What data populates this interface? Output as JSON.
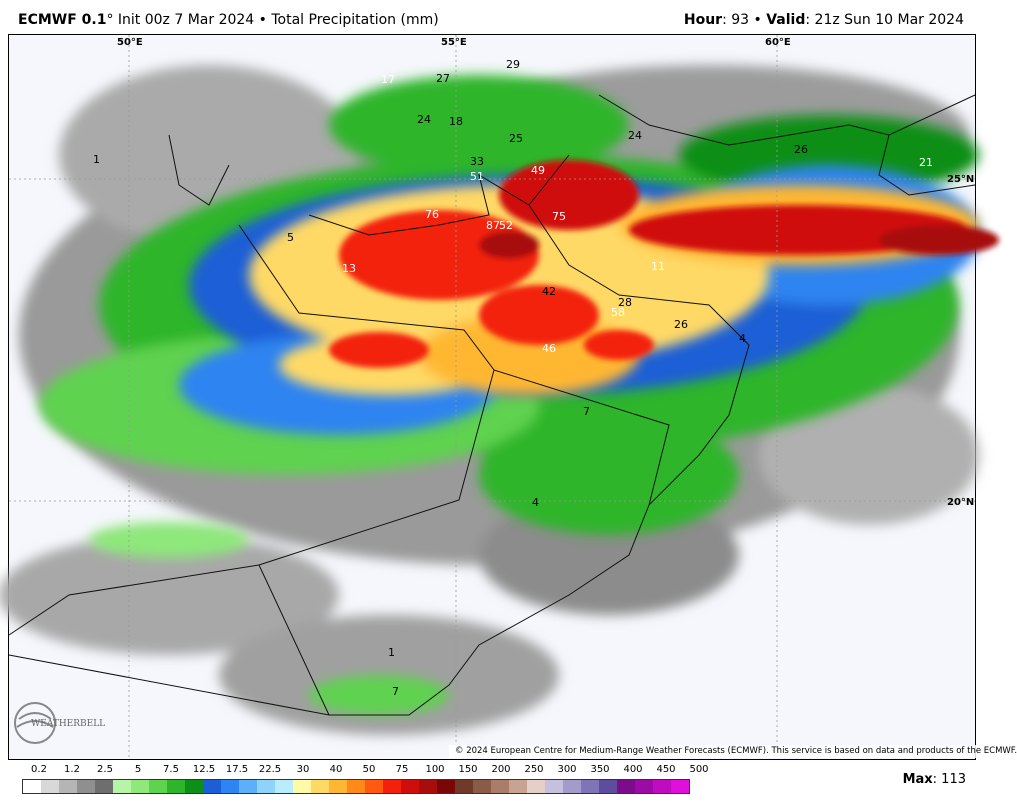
{
  "header": {
    "model": "ECMWF 0.1",
    "degree": "°",
    "init": " Init 00z 7 Mar 2024",
    "separator": " • ",
    "product": "Total Precipitation (mm)",
    "hour_label": "Hour",
    "hour_value": ": 93",
    "valid_label": "Valid",
    "valid_value": ": 21z Sun 10 Mar 2024"
  },
  "map": {
    "longitudes": [
      "50°E",
      "55°E",
      "60°E"
    ],
    "latitudes": [
      "25°N",
      "20°N"
    ],
    "point_labels": [
      {
        "text": "17",
        "color": "#ffffff"
      },
      {
        "text": "27",
        "color": "#000000"
      },
      {
        "text": "29",
        "color": "#000000"
      },
      {
        "text": "24",
        "color": "#000000"
      },
      {
        "text": "18",
        "color": "#000000"
      },
      {
        "text": "25",
        "color": "#000000"
      },
      {
        "text": "24",
        "color": "#000000"
      },
      {
        "text": "26",
        "color": "#000000"
      },
      {
        "text": "21",
        "color": "#ffffff"
      },
      {
        "text": "1",
        "color": "#000000"
      },
      {
        "text": "33",
        "color": "#000000"
      },
      {
        "text": "51",
        "color": "#ffffff"
      },
      {
        "text": "49",
        "color": "#ffffff"
      },
      {
        "text": "76",
        "color": "#ffffff"
      },
      {
        "text": "87",
        "color": "#ffffff"
      },
      {
        "text": "52",
        "color": "#ffffff"
      },
      {
        "text": "75",
        "color": "#ffffff"
      },
      {
        "text": "5",
        "color": "#000000"
      },
      {
        "text": "13",
        "color": "#ffffff"
      },
      {
        "text": "11",
        "color": "#ffffff"
      },
      {
        "text": "42",
        "color": "#000000"
      },
      {
        "text": "28",
        "color": "#000000"
      },
      {
        "text": "58",
        "color": "#ffffff"
      },
      {
        "text": "26",
        "color": "#000000"
      },
      {
        "text": "4",
        "color": "#000000"
      },
      {
        "text": "46",
        "color": "#ffffff"
      },
      {
        "text": "7",
        "color": "#000000"
      },
      {
        "text": "4",
        "color": "#000000"
      },
      {
        "text": "1",
        "color": "#000000"
      },
      {
        "text": "7",
        "color": "#000000"
      }
    ],
    "copyright": "© 2024 European Centre for Medium-Range Weather Forecasts (ECMWF). This service is based on data and products of the ECMWF.",
    "logo_text": "WEATHERBELL"
  },
  "legend": {
    "labels": [
      "0.2",
      "1.2",
      "2.5",
      "5",
      "7.5",
      "12.5",
      "17.5",
      "22.5",
      "30",
      "40",
      "50",
      "75",
      "100",
      "150",
      "200",
      "250",
      "300",
      "350",
      "400",
      "450",
      "500"
    ],
    "colors": [
      "#ffffff",
      "#d8d8d8",
      "#b5b5b5",
      "#8f8f8f",
      "#6e6e6e",
      "#b6f5a8",
      "#8ee87a",
      "#5fd24f",
      "#2fb52a",
      "#0c8f18",
      "#1b5ed6",
      "#2e84f0",
      "#5db0f7",
      "#8fd3fb",
      "#b9ecfd",
      "#fffaa8",
      "#ffd966",
      "#ffb733",
      "#ff8a1a",
      "#ff5a10",
      "#f3200d",
      "#d00d0d",
      "#a80d0d",
      "#7a0707",
      "#6f3a2a",
      "#8a5b47",
      "#a87d6a",
      "#c9a392",
      "#e6cfc6",
      "#c6c0df",
      "#a39ccb",
      "#7f74b6",
      "#5e4d9c",
      "#7b0c8b",
      "#9c0ba6",
      "#bf0cc0",
      "#e10fdc"
    ]
  },
  "max": {
    "label": "Max",
    "value": ": 113"
  }
}
